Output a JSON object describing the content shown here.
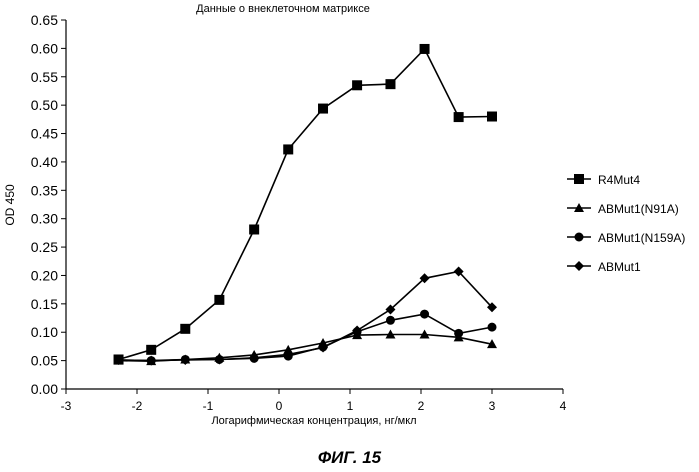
{
  "figure_caption": "ФИГ. 15",
  "chart_data": {
    "type": "line",
    "title": "Данные о внеклеточном матриксе",
    "xlabel": "Логарифмическая концентрация, нг/мкл",
    "ylabel": "OD 450",
    "xlim": [
      -3,
      4
    ],
    "ylim": [
      0,
      0.65
    ],
    "x_ticks": [
      "-3",
      "-2",
      "-1",
      "0",
      "1",
      "2",
      "3",
      "4"
    ],
    "y_ticks": [
      "0.00",
      "0.05",
      "0.10",
      "0.15",
      "0.20",
      "0.25",
      "0.30",
      "0.35",
      "0.40",
      "0.45",
      "0.50",
      "0.55",
      "0.60",
      "0.65"
    ],
    "grid": false,
    "legend_position": "right",
    "series": [
      {
        "name": "R4Mut4",
        "marker": "square",
        "x": [
          -2.26,
          -1.8,
          -1.32,
          -0.84,
          -0.35,
          0.13,
          0.62,
          1.1,
          1.57,
          2.05,
          2.53,
          3.0
        ],
        "y": [
          0.052,
          0.069,
          0.106,
          0.157,
          0.281,
          0.422,
          0.494,
          0.535,
          0.537,
          0.599,
          0.479,
          0.48
        ]
      },
      {
        "name": "ABMut1(N91A)",
        "marker": "triangle",
        "x": [
          -2.26,
          -1.8,
          -1.32,
          -0.84,
          -0.35,
          0.13,
          0.62,
          1.1,
          1.57,
          2.05,
          2.53,
          3.0
        ],
        "y": [
          0.05,
          0.049,
          0.052,
          0.055,
          0.06,
          0.069,
          0.081,
          0.095,
          0.096,
          0.096,
          0.091,
          0.079
        ]
      },
      {
        "name": "ABMut1(N159A)",
        "marker": "circle",
        "x": [
          -2.26,
          -1.8,
          -1.32,
          -0.84,
          -0.35,
          0.13,
          0.62,
          1.1,
          1.57,
          2.05,
          2.53,
          3.0
        ],
        "y": [
          0.051,
          0.05,
          0.052,
          0.052,
          0.054,
          0.058,
          0.074,
          0.101,
          0.121,
          0.132,
          0.098,
          0.109
        ]
      },
      {
        "name": "ABMut1",
        "marker": "diamond",
        "x": [
          -2.26,
          -1.8,
          -1.32,
          -0.84,
          -0.35,
          0.13,
          0.62,
          1.1,
          1.57,
          2.05,
          2.53,
          3.0
        ],
        "y": [
          0.051,
          0.05,
          0.051,
          0.052,
          0.055,
          0.061,
          0.073,
          0.103,
          0.14,
          0.195,
          0.207,
          0.144
        ]
      }
    ]
  }
}
